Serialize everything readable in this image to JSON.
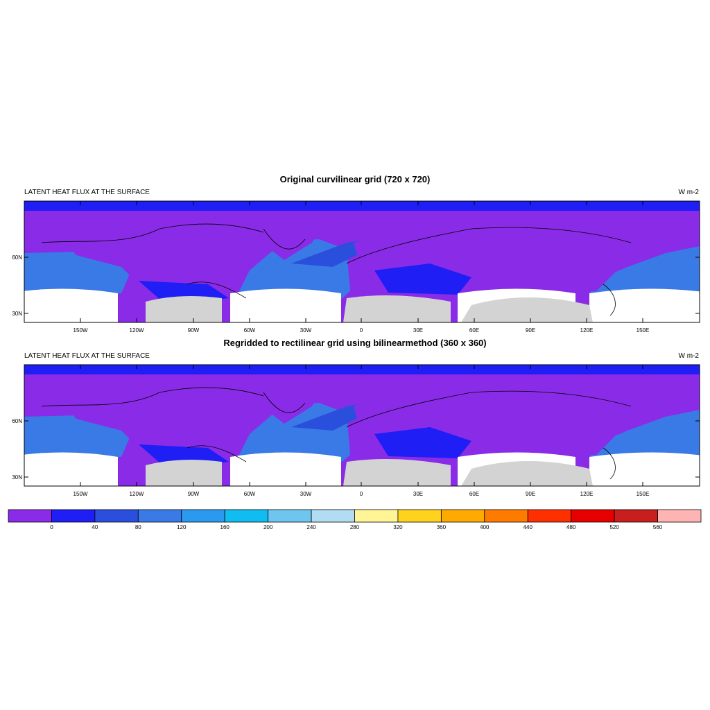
{
  "panels": [
    {
      "title": "Original curvilinear grid (720 x 720)",
      "left_string": "LATENT HEAT FLUX AT THE SURFACE",
      "right_string": "W m-2",
      "lat_labels": [
        "60N",
        "30N"
      ],
      "lon_labels": [
        "150W",
        "120W",
        "90W",
        "60W",
        "30W",
        "0",
        "30E",
        "60E",
        "90E",
        "120E",
        "150E"
      ]
    },
    {
      "title": "Regridded to rectilinear grid using bilinearmethod (360 x 360)",
      "left_string": "LATENT HEAT FLUX AT THE SURFACE",
      "right_string": "W m-2",
      "lat_labels": [
        "60N",
        "30N"
      ],
      "lon_labels": [
        "150W",
        "120W",
        "90W",
        "60W",
        "30W",
        "0",
        "30E",
        "60E",
        "90E",
        "120E",
        "150E"
      ]
    }
  ],
  "colorbar": {
    "labels": [
      "0",
      "40",
      "80",
      "120",
      "160",
      "200",
      "240",
      "280",
      "320",
      "360",
      "400",
      "440",
      "480",
      "520",
      "560"
    ],
    "colors": [
      "#8a2be8",
      "#1e1ef5",
      "#2a4fdc",
      "#3a7ae6",
      "#2a9af0",
      "#10bcf0",
      "#6ec6f0",
      "#b2dcf2",
      "#fff596",
      "#ffd21e",
      "#ffaa00",
      "#ff7b00",
      "#ff3000",
      "#e60000",
      "#c81e1e",
      "#ffb4b4"
    ]
  },
  "colors": {
    "background": "#8a2be8",
    "ocean_low": "#1e1ef5",
    "ocean_mid": "#3a7ae6",
    "land_mask": "#d3d3d3",
    "hotspot": "#ffd21e"
  }
}
